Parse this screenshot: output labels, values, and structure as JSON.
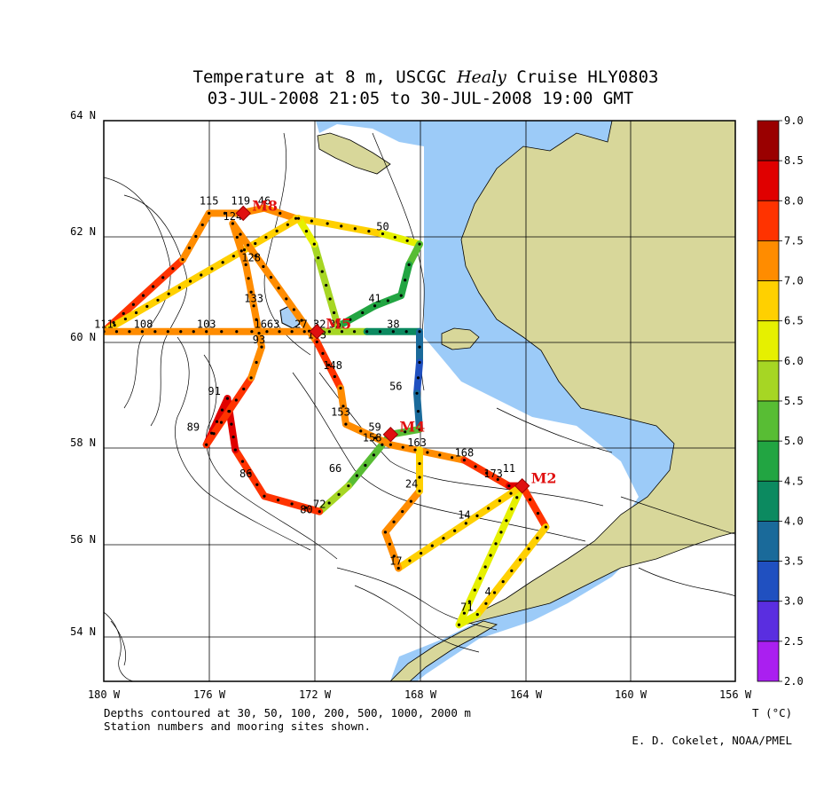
{
  "title": {
    "line1_prefix": "Temperature at 8 m, USCGC ",
    "line1_ship": "Healy",
    "line1_suffix": " Cruise HLY0803",
    "line2": "03-JUL-2008 21:05 to 30-JUL-2008 19:00 GMT"
  },
  "axes": {
    "lat_labels": [
      "64 N",
      "62 N",
      "60 N",
      "58 N",
      "56 N",
      "54 N"
    ],
    "lon_labels": [
      "180 W",
      "176 W",
      "172 W",
      "168 W",
      "164 W",
      "160 W",
      "156 W"
    ],
    "lat_range": [
      53.1,
      64.0
    ],
    "lon_range": [
      -180,
      -156
    ]
  },
  "colorbar": {
    "ticks": [
      "9.0",
      "8.5",
      "8.0",
      "7.5",
      "7.0",
      "6.5",
      "6.0",
      "5.5",
      "5.0",
      "4.5",
      "4.0",
      "3.5",
      "3.0",
      "2.5",
      "2.0"
    ],
    "colors": [
      "#9a0000",
      "#e00000",
      "#ff3300",
      "#ff8c00",
      "#ffd000",
      "#e6f000",
      "#a6d624",
      "#58bd34",
      "#22a542",
      "#0c8a60",
      "#1a6a9a",
      "#2050c0",
      "#5a2ee0",
      "#aa1ff0"
    ],
    "unit_label": "T (°C)"
  },
  "moorings": [
    {
      "label": "M8",
      "lon": -174.7,
      "lat": 62.2
    },
    {
      "label": "M5",
      "lon": -171.9,
      "lat": 59.9
    },
    {
      "label": "M4",
      "lon": -169.1,
      "lat": 57.9
    },
    {
      "label": "M2",
      "lon": -164.1,
      "lat": 56.9
    }
  ],
  "stations": [
    {
      "label": "115",
      "lon": -176.0,
      "lat": 62.3
    },
    {
      "label": "119",
      "lon": -174.8,
      "lat": 62.3
    },
    {
      "label": "46",
      "lon": -173.9,
      "lat": 62.3
    },
    {
      "label": "124",
      "lon": -175.1,
      "lat": 62.0
    },
    {
      "label": "50",
      "lon": -169.4,
      "lat": 61.8
    },
    {
      "label": "128",
      "lon": -174.4,
      "lat": 61.2
    },
    {
      "label": "133",
      "lon": -174.3,
      "lat": 60.4
    },
    {
      "label": "41",
      "lon": -169.7,
      "lat": 60.4
    },
    {
      "label": "111",
      "lon": -180.0,
      "lat": 59.9
    },
    {
      "label": "108",
      "lon": -178.5,
      "lat": 59.9
    },
    {
      "label": "103",
      "lon": -176.1,
      "lat": 59.9
    },
    {
      "label": "1663",
      "lon": -173.8,
      "lat": 59.9
    },
    {
      "label": "27",
      "lon": -172.5,
      "lat": 59.9
    },
    {
      "label": "32",
      "lon": -171.8,
      "lat": 59.9
    },
    {
      "label": "35",
      "lon": -171.2,
      "lat": 59.9
    },
    {
      "label": "38",
      "lon": -169.0,
      "lat": 59.9
    },
    {
      "label": "143",
      "lon": -171.9,
      "lat": 59.7
    },
    {
      "label": "93",
      "lon": -174.1,
      "lat": 59.6
    },
    {
      "label": "148",
      "lon": -171.3,
      "lat": 59.1
    },
    {
      "label": "56",
      "lon": -168.9,
      "lat": 58.7
    },
    {
      "label": "153",
      "lon": -171.0,
      "lat": 58.2
    },
    {
      "label": "59",
      "lon": -169.7,
      "lat": 57.9
    },
    {
      "label": "158",
      "lon": -169.8,
      "lat": 57.7
    },
    {
      "label": "163",
      "lon": -168.1,
      "lat": 57.6
    },
    {
      "label": "168",
      "lon": -166.3,
      "lat": 57.4
    },
    {
      "label": "173",
      "lon": -165.2,
      "lat": 57.0
    },
    {
      "label": "11",
      "lon": -164.6,
      "lat": 57.1
    },
    {
      "label": "91",
      "lon": -175.8,
      "lat": 58.6
    },
    {
      "label": "89",
      "lon": -176.6,
      "lat": 57.9
    },
    {
      "label": "86",
      "lon": -174.6,
      "lat": 57.0
    },
    {
      "label": "66",
      "lon": -171.2,
      "lat": 57.1
    },
    {
      "label": "24",
      "lon": -168.3,
      "lat": 56.8
    },
    {
      "label": "72",
      "lon": -171.8,
      "lat": 56.4
    },
    {
      "label": "80",
      "lon": -172.3,
      "lat": 56.3
    },
    {
      "label": "14",
      "lon": -166.3,
      "lat": 56.2
    },
    {
      "label": "17",
      "lon": -168.9,
      "lat": 55.3
    },
    {
      "label": "4",
      "lon": -165.4,
      "lat": 54.7
    },
    {
      "label": "71",
      "lon": -166.2,
      "lat": 54.4
    }
  ],
  "footnotes": {
    "line1": "Depths contoured at 30, 50, 100, 200, 500, 1000, 2000 m",
    "line2": "Station numbers and mooring sites shown.",
    "credit": "E. D. Cokelet, NOAA/PMEL"
  },
  "chart_data": {
    "type": "map-track",
    "variable": "T (°C)",
    "color_range": [
      2.0,
      9.0
    ],
    "track": [
      {
        "lon": -180.0,
        "lat": 59.9,
        "t": 8.0
      },
      {
        "lon": -178.5,
        "lat": 60.6,
        "t": 7.8
      },
      {
        "lon": -177.0,
        "lat": 61.3,
        "t": 7.5
      },
      {
        "lon": -176.0,
        "lat": 62.2,
        "t": 7.2
      },
      {
        "lon": -174.8,
        "lat": 62.2,
        "t": 6.8
      },
      {
        "lon": -173.9,
        "lat": 62.3,
        "t": 7.6
      },
      {
        "lon": -172.7,
        "lat": 62.1,
        "t": 7.3
      },
      {
        "lon": -171.5,
        "lat": 62.0,
        "t": 6.6
      },
      {
        "lon": -169.4,
        "lat": 61.8,
        "t": 6.4
      },
      {
        "lon": -168.0,
        "lat": 61.6,
        "t": 5.6
      },
      {
        "lon": -168.4,
        "lat": 61.2,
        "t": 5.0
      },
      {
        "lon": -168.7,
        "lat": 60.6,
        "t": 4.9
      },
      {
        "lon": -169.7,
        "lat": 60.4,
        "t": 4.6
      },
      {
        "lon": -171.1,
        "lat": 60.0,
        "t": 5.2
      },
      {
        "lon": -172.0,
        "lat": 61.6,
        "t": 6.5
      },
      {
        "lon": -172.6,
        "lat": 62.1,
        "t": 6.2
      },
      {
        "lon": -180.0,
        "lat": 59.9,
        "t": 7.5
      },
      {
        "lon": -176.1,
        "lat": 59.9,
        "t": 7.0
      },
      {
        "lon": -173.8,
        "lat": 59.9,
        "t": 7.0
      },
      {
        "lon": -171.9,
        "lat": 59.9,
        "t": 7.2
      },
      {
        "lon": -170.0,
        "lat": 59.9,
        "t": 4.4
      },
      {
        "lon": -168.0,
        "lat": 59.9,
        "t": 3.6
      },
      {
        "lon": -168.0,
        "lat": 59.3,
        "t": 3.4
      },
      {
        "lon": -168.1,
        "lat": 58.7,
        "t": 3.2
      },
      {
        "lon": -168.0,
        "lat": 58.0,
        "t": 4.3
      },
      {
        "lon": -169.1,
        "lat": 57.9,
        "t": 6.6
      },
      {
        "lon": -170.7,
        "lat": 56.9,
        "t": 4.2
      },
      {
        "lon": -171.8,
        "lat": 56.4,
        "t": 7.5
      },
      {
        "lon": -173.9,
        "lat": 56.7,
        "t": 7.8
      },
      {
        "lon": -175.0,
        "lat": 57.6,
        "t": 8.0
      },
      {
        "lon": -175.3,
        "lat": 58.6,
        "t": 8.3
      },
      {
        "lon": -176.1,
        "lat": 57.7,
        "t": 8.1
      },
      {
        "lon": -174.4,
        "lat": 59.0,
        "t": 7.5
      },
      {
        "lon": -174.0,
        "lat": 59.6,
        "t": 7.2
      },
      {
        "lon": -174.3,
        "lat": 60.4,
        "t": 7.0
      },
      {
        "lon": -174.6,
        "lat": 61.2,
        "t": 7.1
      },
      {
        "lon": -175.1,
        "lat": 62.0,
        "t": 7.2
      },
      {
        "lon": -171.9,
        "lat": 59.7,
        "t": 7.6
      },
      {
        "lon": -171.0,
        "lat": 58.8,
        "t": 7.5
      },
      {
        "lon": -170.8,
        "lat": 58.1,
        "t": 7.4
      },
      {
        "lon": -169.1,
        "lat": 57.7,
        "t": 7.2
      },
      {
        "lon": -166.3,
        "lat": 57.4,
        "t": 7.3
      },
      {
        "lon": -164.6,
        "lat": 56.9,
        "t": 7.8
      },
      {
        "lon": -164.1,
        "lat": 56.9,
        "t": 8.2
      },
      {
        "lon": -163.2,
        "lat": 56.1,
        "t": 6.8
      },
      {
        "lon": -165.8,
        "lat": 54.4,
        "t": 6.2
      },
      {
        "lon": -166.5,
        "lat": 54.2,
        "t": 6.0
      },
      {
        "lon": -164.1,
        "lat": 56.9,
        "t": 6.4
      },
      {
        "lon": -168.8,
        "lat": 55.3,
        "t": 7.2
      },
      {
        "lon": -169.3,
        "lat": 56.0,
        "t": 7.6
      },
      {
        "lon": -168.0,
        "lat": 56.8,
        "t": 6.6
      },
      {
        "lon": -168.0,
        "lat": 57.6,
        "t": 6.5
      }
    ]
  }
}
